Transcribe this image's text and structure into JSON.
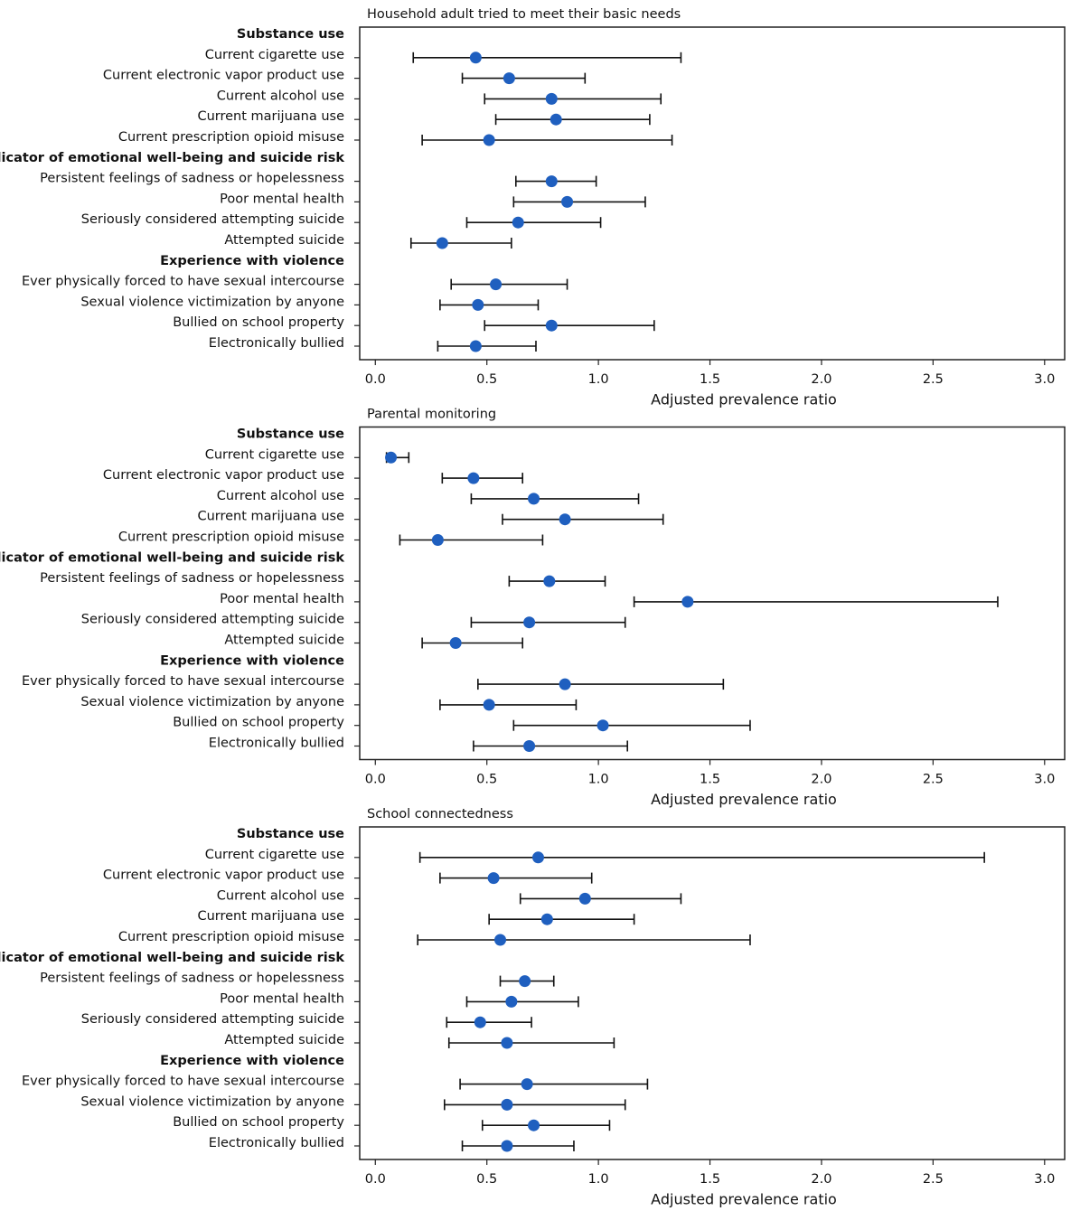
{
  "chart_data": [
    {
      "type": "forest",
      "title": "Household adult tried to meet their basic needs",
      "xlabel": "Adjusted prevalence ratio",
      "color": "#1f5fbf",
      "xlim": [
        -0.07,
        3.09
      ],
      "xticks": [
        {
          "value": 0,
          "label": "0.0"
        },
        0.5,
        {
          "value": 1,
          "label": "1.0"
        },
        1.5,
        {
          "value": 2,
          "label": "2.0"
        },
        2.5,
        {
          "value": 3,
          "label": "3.0"
        }
      ],
      "groups": [
        {
          "name": "Substance use",
          "categories": [
            "Current cigarette use",
            "Current electronic vapor product use",
            "Current alcohol use",
            "Current marijuana use",
            "Current prescription opioid misuse"
          ],
          "values": [
            0.45,
            0.6,
            0.79,
            0.81,
            0.51
          ],
          "lower": [
            0.17,
            0.39,
            0.49,
            0.54,
            0.21
          ],
          "upper": [
            1.37,
            0.94,
            1.28,
            1.23,
            1.33
          ]
        },
        {
          "name": "Indicator of emotional well-being and suicide risk",
          "categories": [
            "Persistent feelings of sadness or hopelessness",
            "Poor mental health",
            "Seriously considered attempting suicide",
            "Attempted suicide"
          ],
          "values": [
            0.79,
            0.86,
            0.64,
            0.3
          ],
          "lower": [
            0.63,
            0.62,
            0.41,
            0.16
          ],
          "upper": [
            0.99,
            1.21,
            1.01,
            0.61
          ]
        },
        {
          "name": "Experience with violence",
          "categories": [
            "Ever physically forced to have sexual intercourse",
            "Sexual violence victimization by anyone",
            "Bullied on school property",
            "Electronically bullied"
          ],
          "values": [
            0.54,
            0.46,
            0.79,
            0.45
          ],
          "lower": [
            0.34,
            0.29,
            0.49,
            0.28
          ],
          "upper": [
            0.86,
            0.73,
            1.25,
            0.72
          ]
        }
      ]
    },
    {
      "type": "forest",
      "title": "Parental monitoring",
      "xlabel": "Adjusted prevalence ratio",
      "color": "#1f5fbf",
      "xlim": [
        -0.07,
        3.09
      ],
      "xticks": [
        {
          "value": 0,
          "label": "0.0"
        },
        0.5,
        {
          "value": 1,
          "label": "1.0"
        },
        1.5,
        {
          "value": 2,
          "label": "2.0"
        },
        2.5,
        {
          "value": 3,
          "label": "3.0"
        }
      ],
      "groups": [
        {
          "name": "Substance use",
          "categories": [
            "Current cigarette use",
            "Current electronic vapor product use",
            "Current alcohol use",
            "Current marijuana use",
            "Current prescription opioid misuse"
          ],
          "values": [
            0.07,
            0.44,
            0.71,
            0.85,
            0.28
          ],
          "lower": [
            0.05,
            0.3,
            0.43,
            0.57,
            0.11
          ],
          "upper": [
            0.15,
            0.66,
            1.18,
            1.29,
            0.75
          ]
        },
        {
          "name": "Indicator of emotional well-being and suicide risk",
          "categories": [
            "Persistent feelings of sadness or hopelessness",
            "Poor mental health",
            "Seriously considered attempting suicide",
            "Attempted suicide"
          ],
          "values": [
            0.78,
            1.4,
            0.69,
            0.36
          ],
          "lower": [
            0.6,
            1.16,
            0.43,
            0.21
          ],
          "upper": [
            1.03,
            2.79,
            1.12,
            0.66
          ]
        },
        {
          "name": "Experience with violence",
          "categories": [
            "Ever physically forced to have sexual intercourse",
            "Sexual violence victimization by anyone",
            "Bullied on school property",
            "Electronically bullied"
          ],
          "values": [
            0.85,
            0.51,
            1.02,
            0.69
          ],
          "lower": [
            0.46,
            0.29,
            0.62,
            0.44
          ],
          "upper": [
            1.56,
            0.9,
            1.68,
            1.13
          ]
        }
      ]
    },
    {
      "type": "forest",
      "title": "School connectedness",
      "xlabel": "Adjusted prevalence ratio",
      "color": "#1f5fbf",
      "xlim": [
        -0.07,
        3.09
      ],
      "xticks": [
        {
          "value": 0,
          "label": "0.0"
        },
        0.5,
        {
          "value": 1,
          "label": "1.0"
        },
        1.5,
        {
          "value": 2,
          "label": "2.0"
        },
        2.5,
        {
          "value": 3,
          "label": "3.0"
        }
      ],
      "groups": [
        {
          "name": "Substance use",
          "categories": [
            "Current cigarette use",
            "Current electronic vapor product use",
            "Current alcohol use",
            "Current marijuana use",
            "Current prescription opioid misuse"
          ],
          "values": [
            0.73,
            0.53,
            0.94,
            0.77,
            0.56
          ],
          "lower": [
            0.2,
            0.29,
            0.65,
            0.51,
            0.19
          ],
          "upper": [
            2.73,
            0.97,
            1.37,
            1.16,
            1.68
          ]
        },
        {
          "name": "Indicator of emotional well-being and suicide risk",
          "categories": [
            "Persistent feelings of sadness or hopelessness",
            "Poor mental health",
            "Seriously considered attempting suicide",
            "Attempted suicide"
          ],
          "values": [
            0.67,
            0.61,
            0.47,
            0.59
          ],
          "lower": [
            0.56,
            0.41,
            0.32,
            0.33
          ],
          "upper": [
            0.8,
            0.91,
            0.7,
            1.07
          ]
        },
        {
          "name": "Experience with violence",
          "categories": [
            "Ever physically forced to have sexual intercourse",
            "Sexual violence victimization by anyone",
            "Bullied on school property",
            "Electronically bullied"
          ],
          "values": [
            0.68,
            0.59,
            0.71,
            0.59
          ],
          "lower": [
            0.38,
            0.31,
            0.48,
            0.39
          ],
          "upper": [
            1.22,
            1.12,
            1.05,
            0.89
          ]
        }
      ]
    }
  ]
}
